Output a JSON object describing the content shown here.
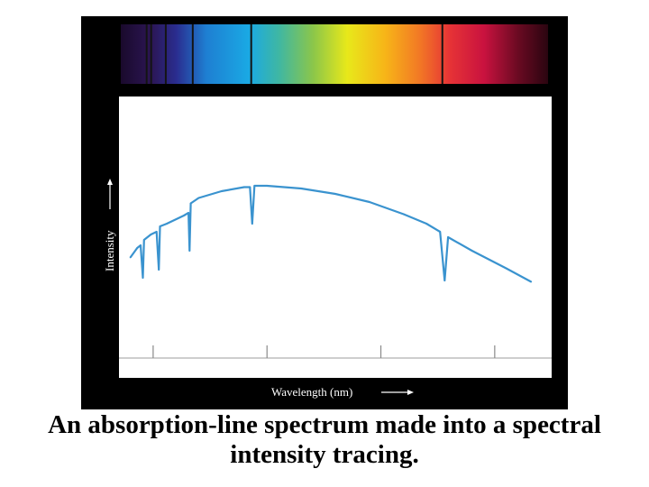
{
  "caption": {
    "line1": "An absorption-line spectrum made into a spectral",
    "line2": "intensity tracing."
  },
  "colors": {
    "panel": "#000000",
    "plot_background": "#ffffff",
    "curve": "#3a93cf",
    "axis_text": "#ffffff"
  },
  "chart_data": {
    "type": "line",
    "xlabel": "Wavelength (nm)",
    "ylabel": "Intensity",
    "xlim": [
      370,
      750
    ],
    "x_ticks": [
      400,
      500,
      600,
      700
    ],
    "y_tick_labels": false,
    "grid": false,
    "spectrum_band": {
      "range_nm": [
        370,
        750
      ],
      "absorption_lines_nm": [
        393,
        397,
        410,
        434,
        486,
        656
      ]
    },
    "series": [
      {
        "points": [
          [
            380,
            0.35
          ],
          [
            386,
            0.42
          ],
          [
            389,
            0.44
          ],
          [
            391,
            0.2
          ],
          [
            392,
            0.48
          ],
          [
            398,
            0.52
          ],
          [
            403,
            0.54
          ],
          [
            405,
            0.26
          ],
          [
            406,
            0.58
          ],
          [
            412,
            0.6
          ],
          [
            427,
            0.66
          ],
          [
            431,
            0.68
          ],
          [
            432,
            0.4
          ],
          [
            433,
            0.75
          ],
          [
            440,
            0.79
          ],
          [
            460,
            0.84
          ],
          [
            480,
            0.87
          ],
          [
            485,
            0.87
          ],
          [
            487,
            0.6
          ],
          [
            489,
            0.88
          ],
          [
            500,
            0.88
          ],
          [
            530,
            0.86
          ],
          [
            560,
            0.82
          ],
          [
            590,
            0.76
          ],
          [
            620,
            0.67
          ],
          [
            640,
            0.6
          ],
          [
            652,
            0.54
          ],
          [
            656,
            0.18
          ],
          [
            659,
            0.5
          ],
          [
            680,
            0.4
          ],
          [
            710,
            0.27
          ],
          [
            732,
            0.17
          ]
        ]
      }
    ]
  }
}
